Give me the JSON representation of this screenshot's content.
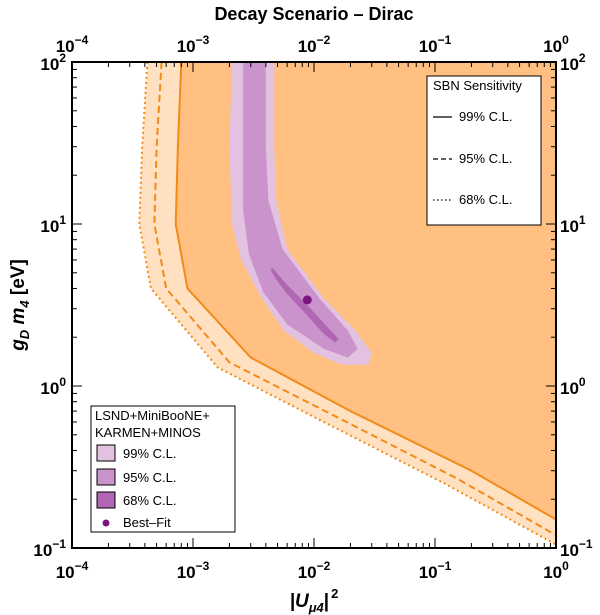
{
  "chart_data": {
    "type": "contour",
    "title": "Decay Scenario – Dirac",
    "xlabel_main": "|U",
    "xlabel_sub": "μ4",
    "xlabel_tail": "|",
    "xlabel_sup": "2",
    "ylabel_main": "g",
    "ylabel_sub": "D",
    "ylabel_var": " m",
    "ylabel_var_sub": "4",
    "ylabel_unit": " [eV]",
    "x_scale": "log",
    "y_scale": "log",
    "xlim": [
      0.0001,
      1
    ],
    "ylim": [
      0.1,
      100
    ],
    "x_ticks": [
      {
        "value": 0.0001,
        "base": "10",
        "exp": "−4"
      },
      {
        "value": 0.001,
        "base": "10",
        "exp": "−3"
      },
      {
        "value": 0.01,
        "base": "10",
        "exp": "−2"
      },
      {
        "value": 0.1,
        "base": "10",
        "exp": "−1"
      },
      {
        "value": 1,
        "base": "10",
        "exp": "0"
      }
    ],
    "y_ticks": [
      {
        "value": 0.1,
        "base": "10",
        "exp": "−1"
      },
      {
        "value": 1,
        "base": "10",
        "exp": "0"
      },
      {
        "value": 10,
        "base": "10",
        "exp": "1"
      },
      {
        "value": 100,
        "base": "10",
        "exp": "2"
      }
    ],
    "sbn_sensitivity": {
      "legend_title": "SBN Sensitivity",
      "curves": [
        {
          "label": "99% C.L.",
          "style": "solid",
          "points": [
            [
              0.0008,
              100
            ],
            [
              0.00075,
              30
            ],
            [
              0.00072,
              10
            ],
            [
              0.0009,
              4
            ],
            [
              0.003,
              1.5
            ],
            [
              0.02,
              0.7
            ],
            [
              0.2,
              0.3
            ],
            [
              1,
              0.15
            ]
          ]
        },
        {
          "label": "95% C.L.",
          "style": "dashed",
          "points": [
            [
              0.00055,
              100
            ],
            [
              0.0005,
              30
            ],
            [
              0.00048,
              10
            ],
            [
              0.0006,
              4
            ],
            [
              0.002,
              1.4
            ],
            [
              0.015,
              0.65
            ],
            [
              0.15,
              0.27
            ],
            [
              1,
              0.12
            ]
          ]
        },
        {
          "label": "68% C.L.",
          "style": "dotted",
          "points": [
            [
              0.00042,
              100
            ],
            [
              0.00038,
              30
            ],
            [
              0.00036,
              10
            ],
            [
              0.00045,
              4
            ],
            [
              0.0016,
              1.3
            ],
            [
              0.012,
              0.6
            ],
            [
              0.12,
              0.25
            ],
            [
              1,
              0.105
            ]
          ]
        }
      ]
    },
    "global_fit": {
      "legend_title_1": "LSND+MiniBooNE+",
      "legend_title_2": "KARMEN+MINOS",
      "regions": [
        {
          "label": "99% C.L.",
          "color": "#e2c2e0",
          "points": [
            [
              0.0021,
              100
            ],
            [
              0.0047,
              100
            ],
            [
              0.0047,
              30
            ],
            [
              0.0048,
              15
            ],
            [
              0.006,
              7
            ],
            [
              0.012,
              3.5
            ],
            [
              0.022,
              2.2
            ],
            [
              0.03,
              1.6
            ],
            [
              0.028,
              1.35
            ],
            [
              0.017,
              1.35
            ],
            [
              0.01,
              1.6
            ],
            [
              0.0056,
              2.2
            ],
            [
              0.0036,
              3.6
            ],
            [
              0.0025,
              6
            ],
            [
              0.0021,
              10
            ],
            [
              0.002,
              30
            ]
          ]
        },
        {
          "label": "95% C.L.",
          "color": "#cb93cb",
          "points": [
            [
              0.0026,
              100
            ],
            [
              0.004,
              100
            ],
            [
              0.004,
              30
            ],
            [
              0.0042,
              14
            ],
            [
              0.0055,
              7
            ],
            [
              0.011,
              3.5
            ],
            [
              0.019,
              2.2
            ],
            [
              0.023,
              1.7
            ],
            [
              0.019,
              1.5
            ],
            [
              0.012,
              1.7
            ],
            [
              0.006,
              2.4
            ],
            [
              0.0038,
              3.8
            ],
            [
              0.0029,
              6.5
            ],
            [
              0.0026,
              12
            ],
            [
              0.0026,
              30
            ]
          ]
        },
        {
          "label": "68% C.L.",
          "color": "#b066b3",
          "points": [
            [
              0.0045,
              5.4
            ],
            [
              0.006,
              4.2
            ],
            [
              0.009,
              3.1
            ],
            [
              0.013,
              2.3
            ],
            [
              0.016,
              1.95
            ],
            [
              0.015,
              1.85
            ],
            [
              0.012,
              2.1
            ],
            [
              0.0085,
              2.8
            ],
            [
              0.006,
              3.7
            ],
            [
              0.0048,
              4.6
            ],
            [
              0.0044,
              5.2
            ]
          ]
        }
      ],
      "best_fit": {
        "label": "Best–Fit",
        "x": 0.0088,
        "y": 3.4,
        "color": "#7b1680"
      }
    },
    "excluded_region_color": "#ffc082",
    "light_band_color": "#ffe1c1",
    "sbn_line_color": "#f28a18"
  }
}
